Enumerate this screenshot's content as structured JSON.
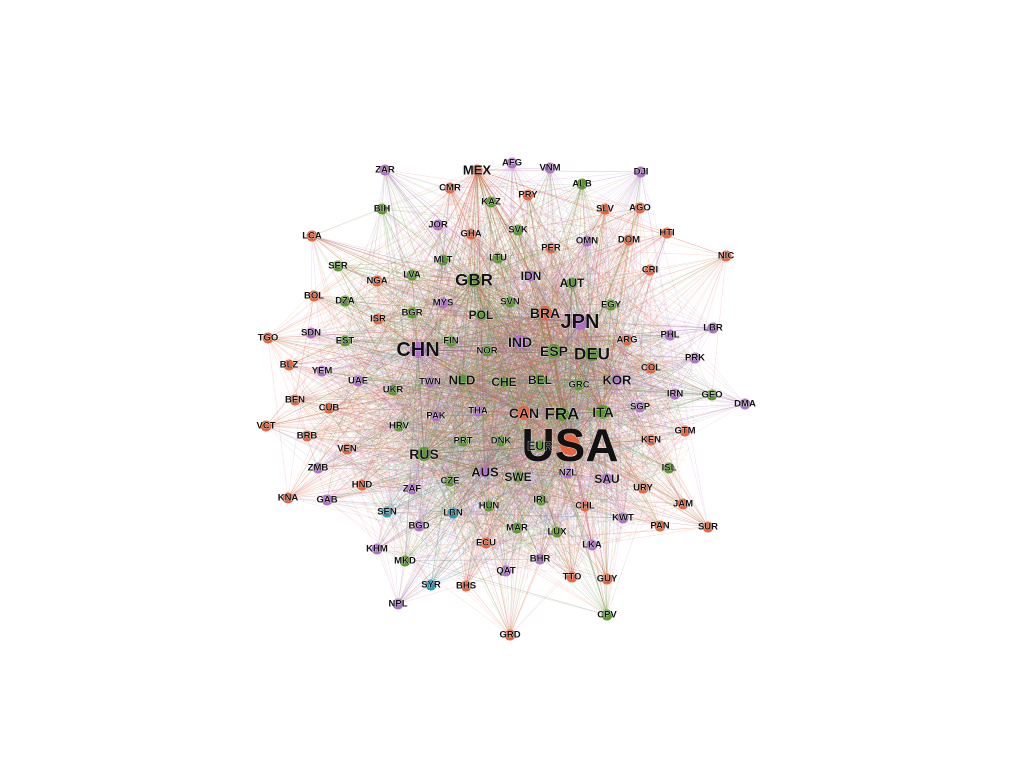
{
  "palette": {
    "orange": "#e8643c",
    "green": "#5a9a2c",
    "purple": "#b070c8",
    "teal": "#2a9ab8"
  },
  "nodes": [
    {
      "id": "USA",
      "group": "orange",
      "weight": 10
    },
    {
      "id": "CHN",
      "group": "purple",
      "weight": 6
    },
    {
      "id": "JPN",
      "group": "purple",
      "weight": 6
    },
    {
      "id": "DEU",
      "group": "green",
      "weight": 5
    },
    {
      "id": "GBR",
      "group": "green",
      "weight": 5
    },
    {
      "id": "FRA",
      "group": "green",
      "weight": 5
    },
    {
      "id": "CAN",
      "group": "orange",
      "weight": 4
    },
    {
      "id": "ITA",
      "group": "green",
      "weight": 4
    },
    {
      "id": "BRA",
      "group": "orange",
      "weight": 4
    },
    {
      "id": "RUS",
      "group": "green",
      "weight": 4
    },
    {
      "id": "ESP",
      "group": "green",
      "weight": 4
    },
    {
      "id": "IND",
      "group": "purple",
      "weight": 4
    },
    {
      "id": "MEX",
      "group": "orange",
      "weight": 3
    },
    {
      "id": "AUS",
      "group": "purple",
      "weight": 3
    },
    {
      "id": "KOR",
      "group": "purple",
      "weight": 3
    },
    {
      "id": "NLD",
      "group": "green",
      "weight": 3
    },
    {
      "id": "EUR",
      "group": "green",
      "weight": 2
    },
    {
      "id": "ZAR",
      "group": "purple",
      "weight": 1
    },
    {
      "id": "AFG",
      "group": "purple",
      "weight": 1
    },
    {
      "id": "VNM",
      "group": "purple",
      "weight": 1
    },
    {
      "id": "DJI",
      "group": "purple",
      "weight": 1
    },
    {
      "id": "CMR",
      "group": "orange",
      "weight": 1
    },
    {
      "id": "PRY",
      "group": "orange",
      "weight": 1
    },
    {
      "id": "ALB",
      "group": "green",
      "weight": 1
    },
    {
      "id": "KAZ",
      "group": "green",
      "weight": 1
    },
    {
      "id": "SLV",
      "group": "orange",
      "weight": 1
    },
    {
      "id": "AGO",
      "group": "orange",
      "weight": 1
    },
    {
      "id": "BIH",
      "group": "green",
      "weight": 1
    },
    {
      "id": "JOR",
      "group": "purple",
      "weight": 1
    },
    {
      "id": "SVK",
      "group": "green",
      "weight": 1
    },
    {
      "id": "HTI",
      "group": "orange",
      "weight": 1
    },
    {
      "id": "LCA",
      "group": "orange",
      "weight": 1
    },
    {
      "id": "GHA",
      "group": "orange",
      "weight": 1
    },
    {
      "id": "PER",
      "group": "orange",
      "weight": 1
    },
    {
      "id": "OMN",
      "group": "purple",
      "weight": 1
    },
    {
      "id": "DOM",
      "group": "orange",
      "weight": 1
    },
    {
      "id": "NIC",
      "group": "orange",
      "weight": 1
    },
    {
      "id": "SER",
      "group": "green",
      "weight": 1
    },
    {
      "id": "MLT",
      "group": "green",
      "weight": 1
    },
    {
      "id": "LTU",
      "group": "green",
      "weight": 1
    },
    {
      "id": "CRI",
      "group": "orange",
      "weight": 1
    },
    {
      "id": "NGA",
      "group": "orange",
      "weight": 1
    },
    {
      "id": "LVA",
      "group": "green",
      "weight": 1
    },
    {
      "id": "IDN",
      "group": "purple",
      "weight": 2
    },
    {
      "id": "AUT",
      "group": "green",
      "weight": 2
    },
    {
      "id": "BOL",
      "group": "orange",
      "weight": 1
    },
    {
      "id": "DZA",
      "group": "green",
      "weight": 1
    },
    {
      "id": "MYS",
      "group": "purple",
      "weight": 1
    },
    {
      "id": "SVN",
      "group": "green",
      "weight": 1
    },
    {
      "id": "EGY",
      "group": "green",
      "weight": 1
    },
    {
      "id": "ISR",
      "group": "orange",
      "weight": 1
    },
    {
      "id": "BGR",
      "group": "green",
      "weight": 1
    },
    {
      "id": "POL",
      "group": "green",
      "weight": 2
    },
    {
      "id": "LBR",
      "group": "purple",
      "weight": 1
    },
    {
      "id": "TGO",
      "group": "orange",
      "weight": 1
    },
    {
      "id": "SDN",
      "group": "purple",
      "weight": 1
    },
    {
      "id": "EST",
      "group": "green",
      "weight": 1
    },
    {
      "id": "FIN",
      "group": "green",
      "weight": 1
    },
    {
      "id": "PHL",
      "group": "purple",
      "weight": 1
    },
    {
      "id": "ARG",
      "group": "orange",
      "weight": 1
    },
    {
      "id": "NOR",
      "group": "green",
      "weight": 1
    },
    {
      "id": "PRK",
      "group": "purple",
      "weight": 1
    },
    {
      "id": "BLZ",
      "group": "orange",
      "weight": 1
    },
    {
      "id": "YEM",
      "group": "purple",
      "weight": 1
    },
    {
      "id": "COL",
      "group": "orange",
      "weight": 1
    },
    {
      "id": "UAE",
      "group": "purple",
      "weight": 1
    },
    {
      "id": "TWN",
      "group": "purple",
      "weight": 1
    },
    {
      "id": "CHE",
      "group": "green",
      "weight": 2
    },
    {
      "id": "BEL",
      "group": "green",
      "weight": 2
    },
    {
      "id": "GRC",
      "group": "green",
      "weight": 1
    },
    {
      "id": "UKR",
      "group": "green",
      "weight": 1
    },
    {
      "id": "IRN",
      "group": "purple",
      "weight": 1
    },
    {
      "id": "GEO",
      "group": "green",
      "weight": 1
    },
    {
      "id": "BEN",
      "group": "orange",
      "weight": 1
    },
    {
      "id": "CUB",
      "group": "orange",
      "weight": 1
    },
    {
      "id": "DMA",
      "group": "purple",
      "weight": 1
    },
    {
      "id": "PAK",
      "group": "purple",
      "weight": 1
    },
    {
      "id": "THA",
      "group": "purple",
      "weight": 1
    },
    {
      "id": "SGP",
      "group": "purple",
      "weight": 1
    },
    {
      "id": "VCT",
      "group": "orange",
      "weight": 1
    },
    {
      "id": "HRV",
      "group": "green",
      "weight": 1
    },
    {
      "id": "KEN",
      "group": "orange",
      "weight": 1
    },
    {
      "id": "BRB",
      "group": "orange",
      "weight": 1
    },
    {
      "id": "PRT",
      "group": "green",
      "weight": 1
    },
    {
      "id": "DNK",
      "group": "green",
      "weight": 1
    },
    {
      "id": "GTM",
      "group": "orange",
      "weight": 1
    },
    {
      "id": "VEN",
      "group": "orange",
      "weight": 1
    },
    {
      "id": "ZMB",
      "group": "purple",
      "weight": 1
    },
    {
      "id": "NZL",
      "group": "purple",
      "weight": 1
    },
    {
      "id": "ISL",
      "group": "green",
      "weight": 1
    },
    {
      "id": "SAU",
      "group": "purple",
      "weight": 2
    },
    {
      "id": "SWE",
      "group": "green",
      "weight": 2
    },
    {
      "id": "HND",
      "group": "orange",
      "weight": 1
    },
    {
      "id": "CZE",
      "group": "green",
      "weight": 1
    },
    {
      "id": "URY",
      "group": "orange",
      "weight": 1
    },
    {
      "id": "KNA",
      "group": "orange",
      "weight": 1
    },
    {
      "id": "GAB",
      "group": "purple",
      "weight": 1
    },
    {
      "id": "ZAF",
      "group": "purple",
      "weight": 1
    },
    {
      "id": "JAM",
      "group": "orange",
      "weight": 1
    },
    {
      "id": "IRL",
      "group": "green",
      "weight": 1
    },
    {
      "id": "HUN",
      "group": "green",
      "weight": 1
    },
    {
      "id": "CHL",
      "group": "orange",
      "weight": 1
    },
    {
      "id": "SEN",
      "group": "teal",
      "weight": 1
    },
    {
      "id": "LBN",
      "group": "teal",
      "weight": 1
    },
    {
      "id": "KWT",
      "group": "purple",
      "weight": 1
    },
    {
      "id": "PAN",
      "group": "orange",
      "weight": 1
    },
    {
      "id": "SUR",
      "group": "orange",
      "weight": 1
    },
    {
      "id": "BGD",
      "group": "purple",
      "weight": 1
    },
    {
      "id": "MAR",
      "group": "green",
      "weight": 1
    },
    {
      "id": "LUX",
      "group": "green",
      "weight": 1
    },
    {
      "id": "ECU",
      "group": "orange",
      "weight": 1
    },
    {
      "id": "LKA",
      "group": "purple",
      "weight": 1
    },
    {
      "id": "KHM",
      "group": "purple",
      "weight": 1
    },
    {
      "id": "MKD",
      "group": "green",
      "weight": 1
    },
    {
      "id": "BHR",
      "group": "purple",
      "weight": 1
    },
    {
      "id": "QAT",
      "group": "purple",
      "weight": 1
    },
    {
      "id": "TTO",
      "group": "orange",
      "weight": 1
    },
    {
      "id": "GUY",
      "group": "orange",
      "weight": 1
    },
    {
      "id": "SYR",
      "group": "teal",
      "weight": 1
    },
    {
      "id": "BHS",
      "group": "orange",
      "weight": 1
    },
    {
      "id": "NPL",
      "group": "purple",
      "weight": 1
    },
    {
      "id": "CPV",
      "group": "green",
      "weight": 1
    },
    {
      "id": "GRD",
      "group": "orange",
      "weight": 1
    }
  ]
}
